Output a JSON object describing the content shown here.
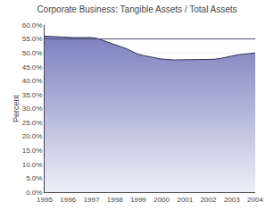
{
  "chart_data": {
    "type": "area",
    "title": "Corporate Business: Tangible Assets / Total Assets",
    "ylabel": "Percent",
    "x": [
      1995,
      1995.25,
      1995.5,
      1995.75,
      1996,
      1996.25,
      1996.5,
      1996.75,
      1997,
      1997.25,
      1997.5,
      1997.75,
      1998,
      1998.25,
      1998.5,
      1998.75,
      1999,
      1999.25,
      1999.5,
      1999.75,
      2000,
      2000.25,
      2000.5,
      2000.75,
      2001,
      2001.25,
      2001.5,
      2001.75,
      2002,
      2002.25,
      2002.5,
      2002.75,
      2003,
      2003.25,
      2003.5,
      2003.75,
      2004
    ],
    "values": [
      56.0,
      56.0,
      55.8,
      55.7,
      55.5,
      55.5,
      55.5,
      55.5,
      55.5,
      55.2,
      54.5,
      53.8,
      53.0,
      52.2,
      51.5,
      50.5,
      49.5,
      49.0,
      48.5,
      48.2,
      47.8,
      47.6,
      47.5,
      47.5,
      47.5,
      47.5,
      47.5,
      47.5,
      47.5,
      47.7,
      48.0,
      48.5,
      49.0,
      49.3,
      49.5,
      49.8,
      50.0
    ],
    "color": "#333355",
    "fill_gradient": [
      "#eeeef8",
      "#7777bb"
    ],
    "hline": {
      "y": 55,
      "color": "#555577"
    },
    "xlim": [
      1995,
      2004
    ],
    "xticks": [
      1995,
      1996,
      1997,
      1998,
      1999,
      2000,
      2001,
      2002,
      2003,
      2004
    ],
    "ylim": [
      0,
      60
    ],
    "yticks": [
      {
        "value": 0,
        "label": "0.0%"
      },
      {
        "value": 5,
        "label": "5.0%"
      },
      {
        "value": 10,
        "label": "10.0%"
      },
      {
        "value": 15,
        "label": "15.0%"
      },
      {
        "value": 20,
        "label": "20.0%"
      },
      {
        "value": 25,
        "label": "25.0%"
      },
      {
        "value": 30,
        "label": "30.0%"
      },
      {
        "value": 35,
        "label": "35.0%"
      },
      {
        "value": 40,
        "label": "40.0%"
      },
      {
        "value": 45,
        "label": "45.0%"
      },
      {
        "value": 50,
        "label": "50.0%"
      },
      {
        "value": 55,
        "label": "55.0%"
      },
      {
        "value": 60,
        "label": "60.0%"
      }
    ],
    "grid": "y"
  }
}
